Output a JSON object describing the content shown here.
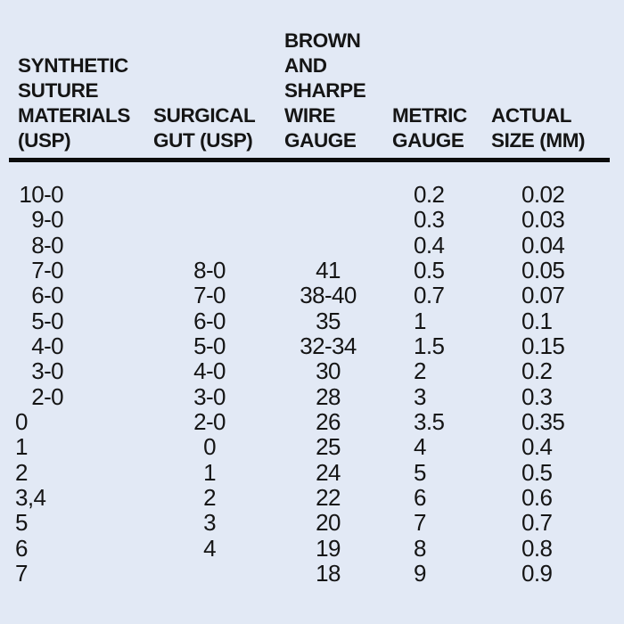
{
  "colors": {
    "background": "#e2e9f5",
    "text": "#151515",
    "rule": "#0c0c0c"
  },
  "table": {
    "columns": [
      {
        "id": "synthetic-suture-materials-usp",
        "header_lines": [
          "SYNTHETIC",
          "SUTURE",
          "MATERIALS",
          "(USP)"
        ]
      },
      {
        "id": "surgical-gut-usp",
        "header_lines": [
          "SURGICAL",
          "GUT (USP)"
        ]
      },
      {
        "id": "brown-and-sharpe-wire-gauge",
        "header_lines": [
          "BROWN",
          "AND",
          "SHARPE",
          "WIRE",
          "GAUGE"
        ]
      },
      {
        "id": "metric-gauge",
        "header_lines": [
          "METRIC",
          "GAUGE"
        ]
      },
      {
        "id": "actual-size-mm",
        "header_lines": [
          "ACTUAL",
          "SIZE (MM)"
        ]
      }
    ],
    "rows": [
      [
        "10-0",
        "",
        "",
        "0.2",
        "0.02"
      ],
      [
        "9-0",
        "",
        "",
        "0.3",
        "0.03"
      ],
      [
        "8-0",
        "",
        "",
        "0.4",
        "0.04"
      ],
      [
        "7-0",
        "8-0",
        "41",
        "0.5",
        "0.05"
      ],
      [
        "6-0",
        "7-0",
        "38-40",
        "0.7",
        "0.07"
      ],
      [
        "5-0",
        "6-0",
        "35",
        "1",
        "0.1"
      ],
      [
        "4-0",
        "5-0",
        "32-34",
        "1.5",
        "0.15"
      ],
      [
        "3-0",
        "4-0",
        "30",
        "2",
        "0.2"
      ],
      [
        "2-0",
        "3-0",
        "28",
        "3",
        "0.3"
      ],
      [
        "0",
        "2-0",
        "26",
        "3.5",
        "0.35"
      ],
      [
        "1",
        "0",
        "25",
        "4",
        "0.4"
      ],
      [
        "2",
        "1",
        "24",
        "5",
        "0.5"
      ],
      [
        "3,4",
        "2",
        "22",
        "6",
        "0.6"
      ],
      [
        "5",
        "3",
        "20",
        "7",
        "0.7"
      ],
      [
        "6",
        "4",
        "19",
        "8",
        "0.8"
      ],
      [
        "7",
        "",
        "18",
        "9",
        "0.9"
      ]
    ]
  }
}
